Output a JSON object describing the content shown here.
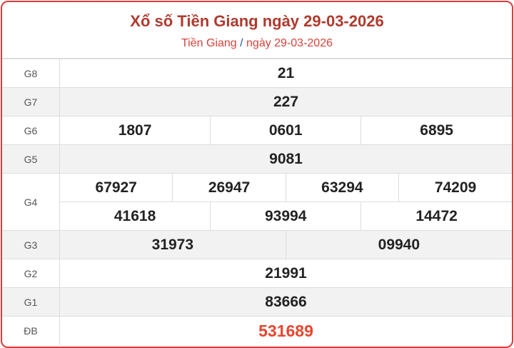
{
  "header": {
    "title": "Xổ số Tiền Giang ngày 29-03-2026",
    "breadcrumb": {
      "province": "Tiền Giang",
      "separator": "/",
      "date": "ngày 29-03-2026"
    }
  },
  "colors": {
    "border": "#e03a3a",
    "title": "#b03a2e",
    "special": "#e8452f"
  },
  "prizes": [
    {
      "label": "G8",
      "values": [
        "21"
      ]
    },
    {
      "label": "G7",
      "values": [
        "227"
      ]
    },
    {
      "label": "G6",
      "values": [
        "1807",
        "0601",
        "6895"
      ]
    },
    {
      "label": "G5",
      "values": [
        "9081"
      ]
    },
    {
      "label": "G4",
      "values": [
        "67927",
        "26947",
        "63294",
        "74209",
        "41618",
        "93994",
        "14472"
      ]
    },
    {
      "label": "G3",
      "values": [
        "31973",
        "09940"
      ]
    },
    {
      "label": "G2",
      "values": [
        "21991"
      ]
    },
    {
      "label": "G1",
      "values": [
        "83666"
      ]
    },
    {
      "label": "ĐB",
      "values": [
        "531689"
      ]
    }
  ]
}
